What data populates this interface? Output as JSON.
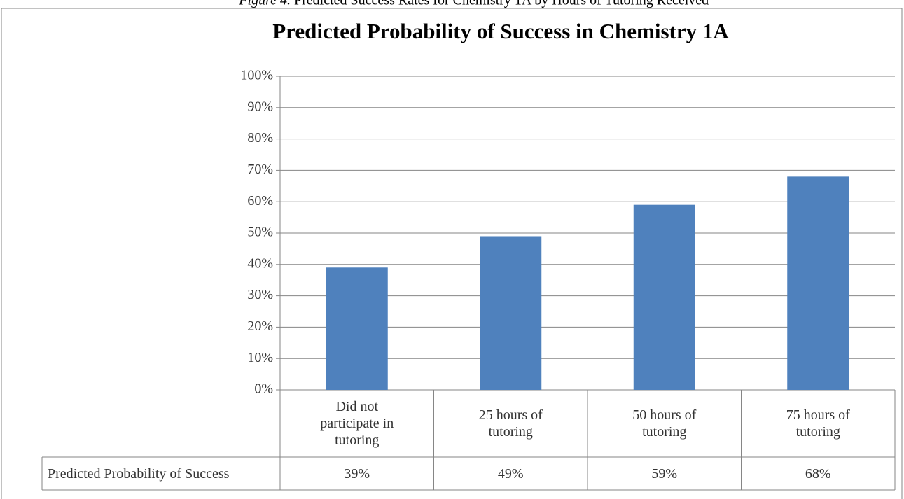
{
  "chart_data": {
    "type": "bar",
    "caption_label": "Figure 4.",
    "caption": "Predicted Success Rates for Chemistry 1A by Hours of Tutoring Received",
    "title": "Predicted Probability of Success in Chemistry 1A",
    "categories": [
      "Did not participate in tutoring",
      "25 hours of tutoring",
      "50 hours of tutoring",
      "75 hours of tutoring"
    ],
    "series": [
      {
        "name": "Predicted Probability of Success",
        "color": "#4f81bd",
        "values": [
          39,
          49,
          59,
          68
        ],
        "value_labels": [
          "39%",
          "49%",
          "59%",
          "68%"
        ]
      }
    ],
    "ylim": [
      0,
      100
    ],
    "yticks": [
      {
        "value": 0,
        "label": "0%"
      },
      {
        "value": 10,
        "label": "10%"
      },
      {
        "value": 20,
        "label": "20%"
      },
      {
        "value": 30,
        "label": "30%"
      },
      {
        "value": 40,
        "label": "40%"
      },
      {
        "value": 50,
        "label": "50%"
      },
      {
        "value": 60,
        "label": "60%"
      },
      {
        "value": 70,
        "label": "70%"
      },
      {
        "value": 80,
        "label": "80%"
      },
      {
        "value": 90,
        "label": "90%"
      },
      {
        "value": 100,
        "label": "100%"
      }
    ],
    "grid": true
  }
}
